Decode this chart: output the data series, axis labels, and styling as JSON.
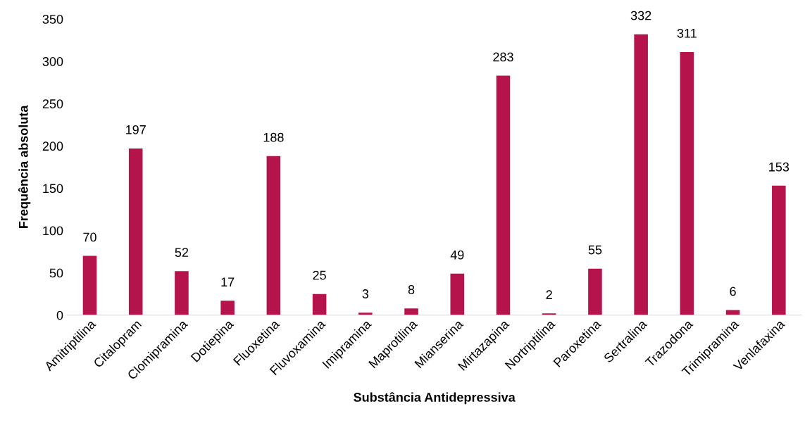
{
  "chart_data": {
    "type": "bar",
    "xlabel": "Substância Antidepressiva",
    "ylabel": "Frequência absoluta",
    "categories": [
      "Amitriptilina",
      "Citalopram",
      "Clomipramina",
      "Dotiepina",
      "Fluoxetina",
      "Fluvoxamina",
      "Imipramina",
      "Maprotilina",
      "Mianserina",
      "Mirtazapina",
      "Nortriptilina",
      "Paroxetina",
      "Sertralina",
      "Trazodona",
      "Trimipramina",
      "Venlafaxina"
    ],
    "values": [
      70,
      197,
      52,
      17,
      188,
      25,
      3,
      8,
      49,
      283,
      2,
      55,
      332,
      311,
      6,
      153
    ],
    "color": "#b5134b",
    "ylim": [
      0,
      350
    ],
    "yticks": [
      0,
      50,
      100,
      150,
      200,
      250,
      300,
      350
    ],
    "grid": false,
    "data_labels": true
  }
}
